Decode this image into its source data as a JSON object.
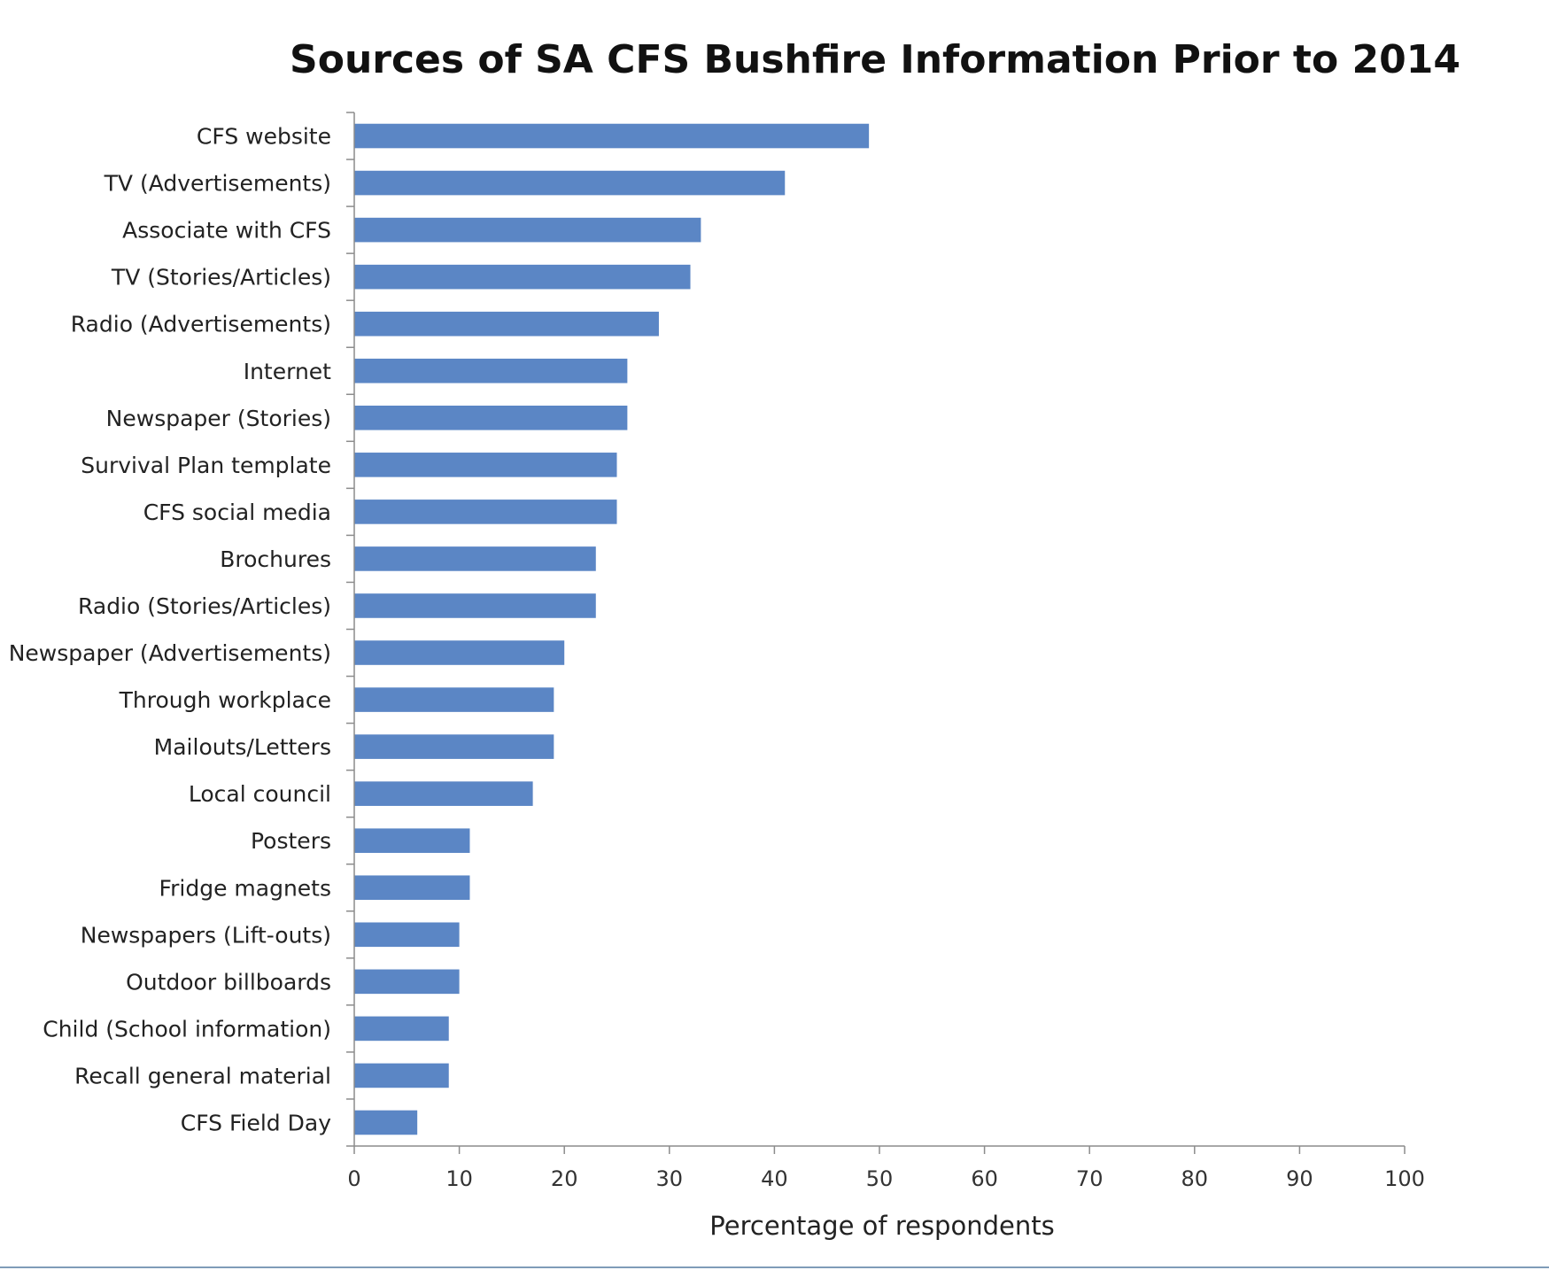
{
  "chart_data": {
    "type": "bar",
    "orientation": "horizontal",
    "title": "Sources of SA CFS Bushfire Information Prior to 2014",
    "xlabel": "Percentage of respondents",
    "ylabel": "",
    "xlim": [
      0,
      100
    ],
    "xticks": [
      0,
      10,
      20,
      30,
      40,
      50,
      60,
      70,
      80,
      90,
      100
    ],
    "grid": false,
    "legend": "none",
    "bar_color": "#5b86c5",
    "categories": [
      "CFS website",
      "TV (Advertisements)",
      "Associate with CFS",
      "TV (Stories/Articles)",
      "Radio (Advertisements)",
      "Internet",
      "Newspaper (Stories)",
      "Survival Plan template",
      "CFS social media",
      "Brochures",
      "Radio (Stories/Articles)",
      "Newspaper (Advertisements)",
      "Through workplace",
      "Mailouts/Letters",
      "Local council",
      "Posters",
      "Fridge magnets",
      "Newspapers (Lift-outs)",
      "Outdoor billboards",
      "Child (School information)",
      "Recall general material",
      "CFS Field Day"
    ],
    "values": [
      49,
      41,
      33,
      32,
      29,
      26,
      26,
      25,
      25,
      23,
      23,
      20,
      19,
      19,
      17,
      11,
      11,
      10,
      10,
      9,
      9,
      6
    ]
  }
}
